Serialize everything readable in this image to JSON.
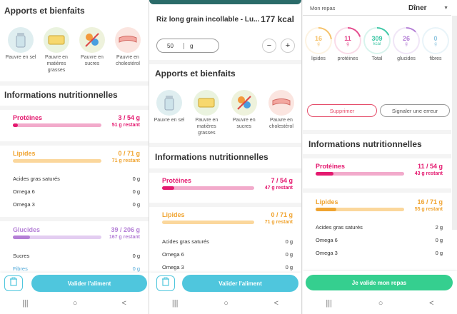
{
  "left": {
    "header": "Apports et bienfaits",
    "icons": [
      {
        "label": "Pauvre en sel",
        "icon": "salt-shaker-icon"
      },
      {
        "label": "Pauvre en matières grasses",
        "icon": "butter-icon"
      },
      {
        "label": "Pauvre en sucres",
        "icon": "candy-icon"
      },
      {
        "label": "Pauvre en cholestérol",
        "icon": "bacon-icon"
      }
    ],
    "nutri_title": "Informations nutritionnelles",
    "proteins": {
      "name": "Protéines",
      "value": "3 / 54 g",
      "rest": "51 g restant",
      "fill": 0.06
    },
    "lipids": {
      "name": "Lipides",
      "value": "0 / 71 g",
      "rest": "71 g restant",
      "fill": 0.0
    },
    "lipid_subs": [
      {
        "name": "Acides gras saturés",
        "value": "0 g"
      },
      {
        "name": "Omega 6",
        "value": "0 g"
      },
      {
        "name": "Omega 3",
        "value": "0 g"
      }
    ],
    "glucides": {
      "name": "Glucides",
      "value": "39 / 206 g",
      "rest": "167 g restant",
      "fill": 0.19
    },
    "glucide_subs": [
      {
        "name": "Sucres",
        "value": "0 g"
      },
      {
        "name": "Fibres",
        "value": "0 g"
      }
    ],
    "validate": "Valider l'aliment"
  },
  "middle": {
    "food_name": "Riz long grain incollable - Lu...",
    "kcal": "177 kcal",
    "quantity": "50",
    "unit": "g",
    "minus": "−",
    "plus": "+",
    "header": "Apports et bienfaits",
    "icons": [
      {
        "label": "Pauvre en sel",
        "icon": "salt-shaker-icon"
      },
      {
        "label": "Pauvre en matières grasses",
        "icon": "butter-icon"
      },
      {
        "label": "Pauvre en sucres",
        "icon": "candy-icon"
      },
      {
        "label": "Pauvre en cholestérol",
        "icon": "bacon-icon"
      }
    ],
    "nutri_title": "Informations nutritionnelles",
    "proteins": {
      "name": "Protéines",
      "value": "7 / 54 g",
      "rest": "47 g restant",
      "fill": 0.13
    },
    "lipids": {
      "name": "Lipides",
      "value": "0 / 71 g",
      "rest": "71 g restant",
      "fill": 0.0
    },
    "lipid_subs": [
      {
        "name": "Acides gras saturés",
        "value": "0 g"
      },
      {
        "name": "Omega 6",
        "value": "0 g"
      },
      {
        "name": "Omega 3",
        "value": "0 g"
      }
    ],
    "validate": "Valider l'aliment"
  },
  "right": {
    "repas_label": "Mon repas",
    "repas_value": "Dîner",
    "rings": [
      {
        "value": "16",
        "unit": "g",
        "label": "lipides",
        "color": "#f5c26b",
        "fill": 0.23
      },
      {
        "value": "11",
        "unit": "g",
        "label": "protéines",
        "color": "#e44a8d",
        "fill": 0.2
      },
      {
        "value": "309",
        "unit": "kcal",
        "label": "Total",
        "color": "#3ec7a6",
        "fill": 0.18
      },
      {
        "value": "26",
        "unit": "g",
        "label": "glucides",
        "color": "#b47fd6",
        "fill": 0.13
      },
      {
        "value": "0",
        "unit": "g",
        "label": "fibres",
        "color": "#8fc6e0",
        "fill": 0.0
      }
    ],
    "delete": "Supprimer",
    "report": "Signaler une erreur",
    "nutri_title": "Informations nutritionnelles",
    "proteins": {
      "name": "Protéines",
      "value": "11 / 54 g",
      "rest": "43 g restant",
      "fill": 0.2
    },
    "lipids": {
      "name": "Lipides",
      "value": "16 / 71 g",
      "rest": "55 g restant",
      "fill": 0.23
    },
    "lipid_subs": [
      {
        "name": "Acides gras saturés",
        "value": "2 g"
      },
      {
        "name": "Omega 6",
        "value": "0 g"
      },
      {
        "name": "Omega 3",
        "value": "0 g"
      }
    ],
    "validate": "Je valide mon repas"
  },
  "nav": {
    "recent": "|||",
    "home": "○",
    "back": "<"
  },
  "colors": {
    "protein": "#e4196f",
    "protein_track": "#f2aacb",
    "lipid": "#f0a431",
    "lipid_track": "#fbd79c",
    "glucide": "#b47fd6",
    "glucide_track": "#e3cdf1",
    "button": "#4fc6dd",
    "green_button": "#35cf8f",
    "delete": "#e54d6a"
  }
}
